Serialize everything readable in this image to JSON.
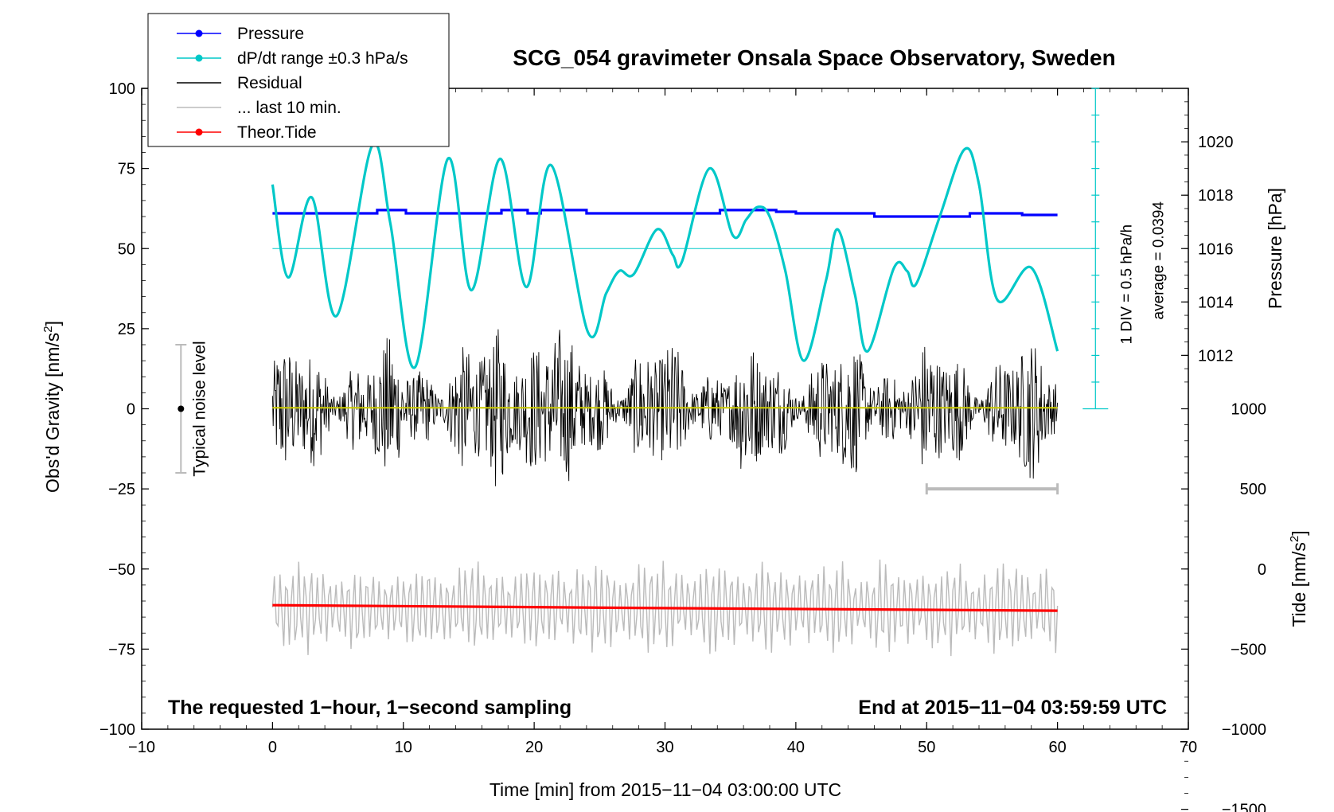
{
  "chart_data": {
    "type": "line",
    "title": "SCG_054 gravimeter Onsala Space Observatory, Sweden",
    "xlabel": "Time [min] from 2015−11−04 03:00:00 UTC",
    "ylabel_left": "Obs'd Gravity [nm/s",
    "ylabel_left_sup": "2",
    "ylabel_left_end": "]",
    "ylabel_right_pressure": "Pressure [hPa]",
    "ylabel_right_tide": "Tide [nm/s",
    "ylabel_right_tide_sup": "2",
    "ylabel_right_tide_end": "]",
    "xlim": [
      -10,
      70
    ],
    "ylim": [
      -100,
      100
    ],
    "x_ticks": [
      -10,
      0,
      10,
      20,
      30,
      40,
      50,
      60,
      70
    ],
    "x_tick_labels": [
      "−10",
      "0",
      "10",
      "20",
      "30",
      "40",
      "50",
      "60",
      "70"
    ],
    "y_ticks": [
      -100,
      -75,
      -50,
      -25,
      0,
      25,
      50,
      75,
      100
    ],
    "y_tick_labels": [
      "−100",
      "−75",
      "−50",
      "−25",
      "0",
      "25",
      "50",
      "75",
      "100"
    ],
    "pressure_axis": {
      "ticks": [
        1012,
        1014,
        1016,
        1018,
        1020
      ],
      "tick_labels": [
        "1012",
        "1014",
        "1016",
        "1018",
        "1020"
      ],
      "gravity_at_1016": 50,
      "gravity_per_hPa": 8.33
    },
    "tide_axis": {
      "ticks": [
        -1500,
        -1000,
        -500,
        0,
        500,
        1000
      ],
      "tick_labels": [
        "−1500",
        "−1000",
        "−500",
        "0",
        "500",
        "1000"
      ],
      "gravity_at_0": -50,
      "gravity_per_unit": 0.05
    },
    "dpdt_scale": {
      "label_div": "1 DIV = 0.5 hPa/h",
      "label_avg": "average = 0.0394",
      "x": 62.9,
      "top": 100,
      "bottom": 0,
      "divisions": 12
    },
    "legend": [
      {
        "label": "Pressure",
        "color": "#0000ff",
        "marker": true
      },
      {
        "label": "dP/dt range ±0.3 hPa/s",
        "color": "#00c8c8",
        "marker": true
      },
      {
        "label": "Residual",
        "color": "#000000",
        "marker": false
      },
      {
        "label": "... last 10 min.",
        "color": "#bbbbbb",
        "marker": false
      },
      {
        "label": "Theor.Tide",
        "color": "#ff0000",
        "marker": true
      }
    ],
    "series": [
      {
        "name": "Pressure",
        "color": "#0000ff",
        "points": [
          [
            0,
            61
          ],
          [
            8,
            61
          ],
          [
            8,
            62
          ],
          [
            10.2,
            62
          ],
          [
            10.2,
            61
          ],
          [
            17.5,
            61
          ],
          [
            17.5,
            62
          ],
          [
            19.5,
            62
          ],
          [
            19.5,
            61
          ],
          [
            20.5,
            61
          ],
          [
            20.5,
            62
          ],
          [
            24,
            62
          ],
          [
            24,
            61
          ],
          [
            34.2,
            61
          ],
          [
            34.2,
            62
          ],
          [
            38.5,
            62
          ],
          [
            38.5,
            61.5
          ],
          [
            40,
            61.5
          ],
          [
            40,
            61
          ],
          [
            46,
            61
          ],
          [
            46,
            60
          ],
          [
            53.3,
            60
          ],
          [
            53.3,
            61
          ],
          [
            57.3,
            61
          ],
          [
            57.3,
            60.5
          ],
          [
            60,
            60.5
          ]
        ]
      },
      {
        "name": "dP/dt",
        "color": "#00c8c8",
        "points": [
          [
            0,
            70
          ],
          [
            1.2,
            41
          ],
          [
            3,
            66
          ],
          [
            4.9,
            29
          ],
          [
            7.6,
            82
          ],
          [
            9,
            58
          ],
          [
            10.9,
            13
          ],
          [
            13.4,
            78
          ],
          [
            15.2,
            37
          ],
          [
            17.4,
            78
          ],
          [
            19.4,
            38
          ],
          [
            21.3,
            76
          ],
          [
            24.1,
            24
          ],
          [
            25.5,
            36
          ],
          [
            26.5,
            43
          ],
          [
            27.6,
            42
          ],
          [
            29.4,
            56
          ],
          [
            30.6,
            48
          ],
          [
            31.3,
            46
          ],
          [
            33.4,
            75
          ],
          [
            35.2,
            54
          ],
          [
            36.2,
            59
          ],
          [
            37.1,
            63
          ],
          [
            38,
            60
          ],
          [
            39.2,
            43
          ],
          [
            40.6,
            15
          ],
          [
            42.3,
            40
          ],
          [
            43.2,
            56
          ],
          [
            44.5,
            36
          ],
          [
            45.5,
            18
          ],
          [
            47.5,
            44
          ],
          [
            48.5,
            43
          ],
          [
            49.2,
            39
          ],
          [
            51,
            60
          ],
          [
            52.9,
            81
          ],
          [
            54,
            70
          ],
          [
            55.4,
            34
          ],
          [
            58,
            44
          ],
          [
            60,
            18
          ]
        ]
      },
      {
        "name": "Theor.Tide",
        "color": "#ff0000",
        "points": [
          [
            0,
            -61.3
          ],
          [
            30,
            -62.2
          ],
          [
            60,
            -63.0
          ]
        ]
      },
      {
        "name": "Residual (smoothed)",
        "color": "#cccc00",
        "points": [
          [
            0,
            0.3
          ],
          [
            60,
            0.3
          ]
        ]
      }
    ],
    "residual_envelope_note": "dense black noise approx ±30 nm/s² around 0",
    "last_10_min_bar": [
      50,
      60,
      -25
    ],
    "typical_noise_level": {
      "label": "Typical noise level",
      "x": -7,
      "center": 0,
      "range": [
        -20,
        20
      ]
    },
    "notes": {
      "left": "The requested 1−hour, 1−second sampling",
      "right": "End at 2015−11−04 03:59:59 UTC"
    }
  }
}
